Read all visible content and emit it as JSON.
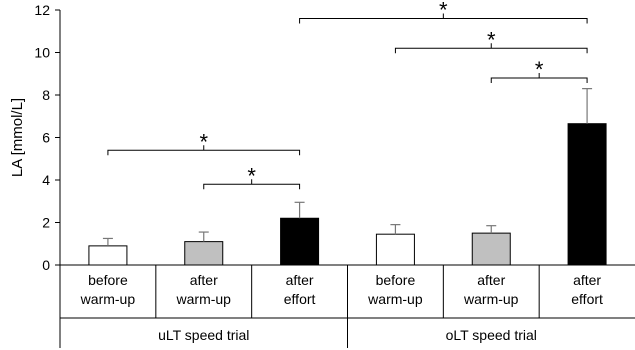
{
  "chart_data": {
    "type": "bar",
    "ylabel": "LA [mmol/L]",
    "ylim": [
      0,
      12
    ],
    "yticks": [
      "0",
      "2",
      "4",
      "6",
      "8",
      "10",
      "12"
    ],
    "categories": [
      [
        "before",
        "warm-up"
      ],
      [
        "after",
        "warm-up"
      ],
      [
        "after",
        "effort"
      ],
      [
        "before",
        "warm-up"
      ],
      [
        "after",
        "warm-up"
      ],
      [
        "after",
        "effort"
      ]
    ],
    "groups": [
      "uLT speed trial",
      "oLT speed trial"
    ],
    "values": [
      0.9,
      1.1,
      2.2,
      1.45,
      1.5,
      6.65
    ],
    "errors": [
      0.35,
      0.45,
      0.75,
      0.45,
      0.35,
      1.65
    ],
    "fills": [
      "#ffffff",
      "#c0c0c0",
      "#000000",
      "#ffffff",
      "#c0c0c0",
      "#000000"
    ],
    "significance": [
      {
        "from": 0,
        "to": 2,
        "y": 5.4,
        "label": "*"
      },
      {
        "from": 1,
        "to": 2,
        "y": 3.8,
        "label": "*"
      },
      {
        "from": 4,
        "to": 5,
        "y": 8.8,
        "label": "*"
      },
      {
        "from": 3,
        "to": 5,
        "y": 10.2,
        "label": "*"
      },
      {
        "from": 2,
        "to": 5,
        "y": 11.6,
        "label": "*"
      }
    ]
  }
}
